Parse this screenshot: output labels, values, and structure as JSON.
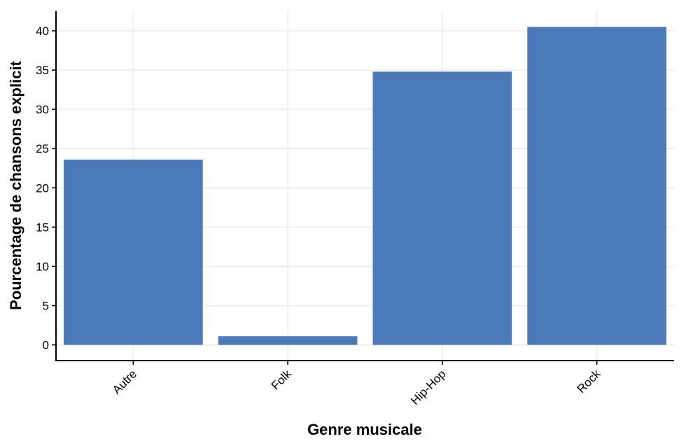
{
  "chart_data": {
    "type": "bar",
    "title": "",
    "xlabel": "Genre musicale",
    "ylabel": "Pourcentage de chansons explicit",
    "categories": [
      "Autre",
      "Folk",
      "Hip-Hop",
      "Rock"
    ],
    "values": [
      23.6,
      1.1,
      34.8,
      40.5
    ],
    "ylim": [
      -2,
      42.5
    ],
    "yticks": [
      0,
      5,
      10,
      15,
      20,
      25,
      30,
      35,
      40
    ],
    "bar_color": "#4a7ab7",
    "grid": true,
    "legend": "none"
  }
}
